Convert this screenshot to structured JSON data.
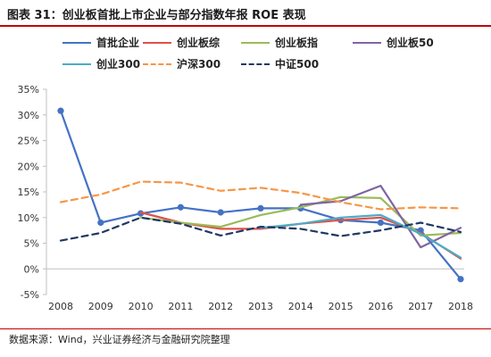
{
  "header": {
    "title": "图表 31：创业板首批上市企业与部分指数年报 ROE 表现"
  },
  "source": "数据来源：Wind，兴业证券经济与金融研究院整理",
  "chart_data": {
    "type": "line",
    "title": "",
    "xlabel": "",
    "ylabel": "",
    "x": [
      "2008",
      "2009",
      "2010",
      "2011",
      "2012",
      "2013",
      "2014",
      "2015",
      "2016",
      "2017",
      "2018"
    ],
    "ylim": [
      -5,
      35
    ],
    "yticks": [
      "35%",
      "30%",
      "25%",
      "20%",
      "15%",
      "10%",
      "5%",
      "0%",
      "-5%"
    ],
    "ytick_values": [
      35,
      30,
      25,
      20,
      15,
      10,
      5,
      0,
      -5
    ],
    "grid": false,
    "legend_position": "top",
    "series": [
      {
        "name": "首批企业",
        "color": "#4472c4",
        "dash": "solid",
        "values": [
          30.8,
          9.0,
          10.8,
          12.0,
          11.0,
          11.8,
          11.8,
          9.5,
          9.0,
          7.5,
          -2.0
        ]
      },
      {
        "name": "创业板综",
        "color": "#e0504a",
        "dash": "solid",
        "values": [
          null,
          null,
          11.0,
          9.0,
          7.8,
          7.8,
          8.8,
          9.5,
          10.0,
          7.0,
          2.0
        ]
      },
      {
        "name": "创业板指",
        "color": "#9bbb59",
        "dash": "solid",
        "values": [
          null,
          null,
          10.0,
          9.0,
          8.2,
          10.5,
          12.0,
          14.0,
          13.8,
          6.5,
          7.0
        ]
      },
      {
        "name": "创业板50",
        "color": "#8064a2",
        "dash": "solid",
        "values": [
          null,
          null,
          null,
          null,
          null,
          null,
          12.5,
          13.2,
          16.2,
          4.2,
          8.0
        ]
      },
      {
        "name": "创业300",
        "color": "#4bacc6",
        "dash": "solid",
        "values": [
          null,
          null,
          null,
          null,
          null,
          8.0,
          8.8,
          10.0,
          10.5,
          6.8,
          2.2
        ]
      },
      {
        "name": "沪深300",
        "color": "#f79646",
        "dash": "dashed",
        "values": [
          13.0,
          14.5,
          17.0,
          16.8,
          15.2,
          15.8,
          14.8,
          13.0,
          11.6,
          12.0,
          11.8
        ]
      },
      {
        "name": "中证500",
        "color": "#1f3864",
        "dash": "dashed",
        "values": [
          5.5,
          7.0,
          10.0,
          8.8,
          6.5,
          8.2,
          7.8,
          6.4,
          7.5,
          9.0,
          7.2
        ]
      }
    ]
  }
}
